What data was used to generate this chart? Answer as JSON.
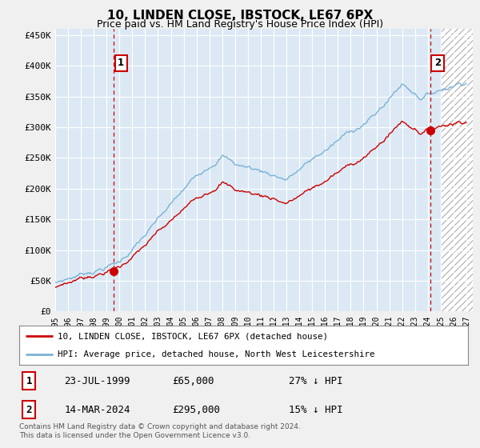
{
  "title": "10, LINDEN CLOSE, IBSTOCK, LE67 6PX",
  "subtitle": "Price paid vs. HM Land Registry's House Price Index (HPI)",
  "ylabel_ticks": [
    "£0",
    "£50K",
    "£100K",
    "£150K",
    "£200K",
    "£250K",
    "£300K",
    "£350K",
    "£400K",
    "£450K"
  ],
  "ytick_values": [
    0,
    50000,
    100000,
    150000,
    200000,
    250000,
    300000,
    350000,
    400000,
    450000
  ],
  "ylim": [
    0,
    460000
  ],
  "xlim_start": 1995.0,
  "xlim_end": 2027.5,
  "xtick_years": [
    1995,
    1996,
    1997,
    1998,
    1999,
    2000,
    2001,
    2002,
    2003,
    2004,
    2005,
    2006,
    2007,
    2008,
    2009,
    2010,
    2011,
    2012,
    2013,
    2014,
    2015,
    2016,
    2017,
    2018,
    2019,
    2020,
    2021,
    2022,
    2023,
    2024,
    2025,
    2026,
    2027
  ],
  "hpi_color": "#7ab3d4",
  "price_color": "#cc0000",
  "marker_color": "#cc0000",
  "sale1_x": 1999.56,
  "sale1_y": 65000,
  "sale2_x": 2024.21,
  "sale2_y": 295000,
  "vline_color": "#cc0000",
  "legend_line1": "10, LINDEN CLOSE, IBSTOCK, LE67 6PX (detached house)",
  "legend_line2": "HPI: Average price, detached house, North West Leicestershire",
  "table_row1": [
    "1",
    "23-JUL-1999",
    "£65,000",
    "27% ↓ HPI"
  ],
  "table_row2": [
    "2",
    "14-MAR-2024",
    "£295,000",
    "15% ↓ HPI"
  ],
  "footnote": "Contains HM Land Registry data © Crown copyright and database right 2024.\nThis data is licensed under the Open Government Licence v3.0.",
  "bg_color": "#f0f0f0",
  "plot_bg_color": "#dce9f5",
  "grid_color": "#ffffff",
  "hatch_start": 2025.0
}
